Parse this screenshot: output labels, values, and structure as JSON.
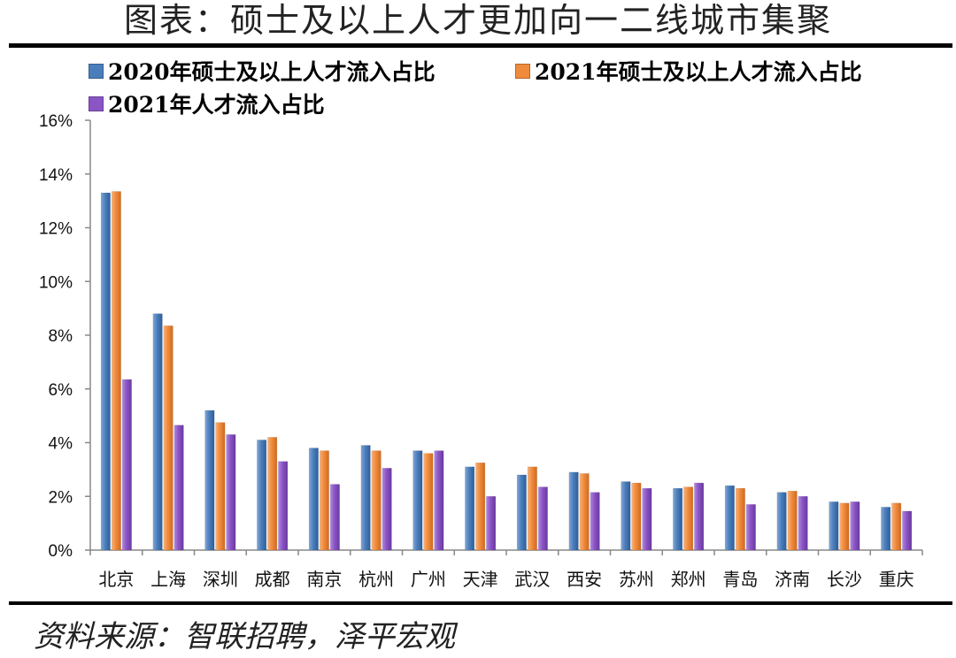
{
  "title": "图表：硕士及以上人才更加向一二线城市集聚",
  "source": "资料来源：智联招聘，泽平宏观",
  "chart_data": {
    "type": "bar",
    "categories": [
      "北京",
      "上海",
      "深圳",
      "成都",
      "南京",
      "杭州",
      "广州",
      "天津",
      "武汉",
      "西安",
      "苏州",
      "郑州",
      "青岛",
      "济南",
      "长沙",
      "重庆"
    ],
    "series": [
      {
        "name": "2020年硕士及以上人才流入占比",
        "color": "#4a7ebb",
        "values": [
          13.3,
          8.8,
          5.2,
          4.1,
          3.8,
          3.9,
          3.7,
          3.1,
          2.8,
          2.9,
          2.55,
          2.3,
          2.4,
          2.15,
          1.8,
          1.6
        ]
      },
      {
        "name": "2021年硕士及以上人才流入占比",
        "color": "#f08a3c",
        "values": [
          13.35,
          8.35,
          4.75,
          4.2,
          3.7,
          3.7,
          3.6,
          3.25,
          3.1,
          2.85,
          2.5,
          2.35,
          2.3,
          2.2,
          1.75,
          1.75
        ]
      },
      {
        "name": "2021年人才流入占比",
        "color": "#8a55c4",
        "values": [
          6.35,
          4.65,
          4.3,
          3.3,
          2.45,
          3.05,
          3.7,
          2.0,
          2.35,
          2.15,
          2.3,
          2.5,
          1.7,
          2.0,
          1.8,
          1.45
        ]
      }
    ],
    "y_ticks": [
      "0%",
      "2%",
      "4%",
      "6%",
      "8%",
      "10%",
      "12%",
      "14%",
      "16%"
    ],
    "ylim": [
      0,
      16
    ],
    "legend_position": "top-left",
    "grid": false
  }
}
